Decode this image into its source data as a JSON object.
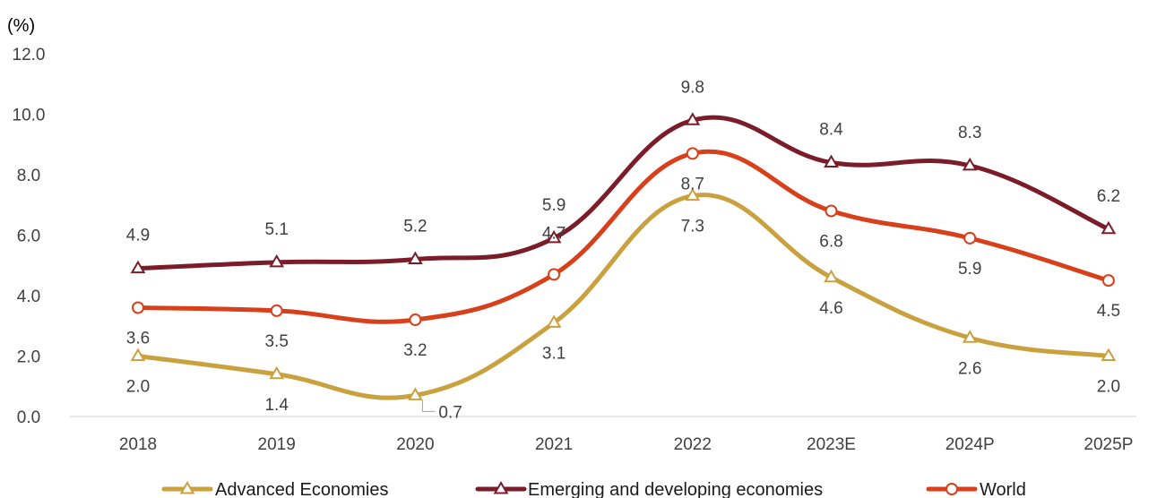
{
  "chart_data": {
    "type": "line",
    "unit_label": "(%)",
    "categories": [
      "2018",
      "2019",
      "2020",
      "2021",
      "2022",
      "2023E",
      "2024P",
      "2025P"
    ],
    "ylim": [
      0,
      12
    ],
    "yticks": [
      "0.0",
      "2.0",
      "4.0",
      "6.0",
      "8.0",
      "10.0",
      "12.0"
    ],
    "grid": false,
    "legend_position": "bottom",
    "series": [
      {
        "name": "Advanced Economies",
        "values": [
          2.0,
          1.4,
          0.7,
          3.1,
          7.3,
          4.6,
          2.6,
          2.0
        ],
        "labels": [
          "2.0",
          "1.4",
          "0.7",
          "3.1",
          "7.3",
          "4.6",
          "2.6",
          "2.0"
        ],
        "color": "#c9a13f",
        "marker": "triangle"
      },
      {
        "name": "Emerging and developing economies",
        "values": [
          4.9,
          5.1,
          5.2,
          5.9,
          9.8,
          8.4,
          8.3,
          6.2
        ],
        "labels": [
          "4.9",
          "5.1",
          "5.2",
          "5.9",
          "9.8",
          "8.4",
          "8.3",
          "6.2"
        ],
        "color": "#7b1c2a",
        "marker": "triangle"
      },
      {
        "name": "World",
        "values": [
          3.6,
          3.5,
          3.2,
          4.7,
          8.7,
          6.8,
          5.9,
          4.5
        ],
        "labels": [
          "3.6",
          "3.5",
          "3.2",
          "4.7",
          "8.7",
          "6.8",
          "5.9",
          "4.5"
        ],
        "color": "#d7401a",
        "marker": "circle"
      }
    ]
  }
}
